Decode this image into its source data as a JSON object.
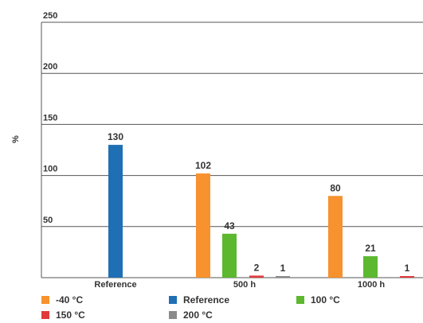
{
  "chart_data": {
    "type": "bar",
    "ylabel": "%",
    "ylim": [
      0,
      250
    ],
    "yticks": [
      50,
      100,
      150,
      200,
      250
    ],
    "grid": true,
    "legend_position": "bottom",
    "categories": [
      "Reference",
      "500 h",
      "1000 h"
    ],
    "series": [
      {
        "name": "Reference",
        "color": "#1f6fb4",
        "values": [
          130,
          null,
          null
        ],
        "labels": [
          "130",
          null,
          null
        ]
      },
      {
        "name": "-40 °C",
        "color": "#f7922e",
        "values": [
          null,
          102,
          80
        ],
        "labels": [
          null,
          "102",
          "80"
        ]
      },
      {
        "name": "100 °C",
        "color": "#5cb82f",
        "values": [
          null,
          43,
          21
        ],
        "labels": [
          null,
          "43",
          "21"
        ]
      },
      {
        "name": "150 °C",
        "color": "#e0393b",
        "values": [
          null,
          2,
          1
        ],
        "labels": [
          null,
          "2",
          "1"
        ]
      },
      {
        "name": "200 °C",
        "color": "#8a8a8a",
        "values": [
          null,
          1,
          null
        ],
        "labels": [
          null,
          "1",
          null
        ]
      }
    ]
  },
  "legend": [
    {
      "label": "-40 °C",
      "color": "#f7922e"
    },
    {
      "label": "Reference",
      "color": "#1f6fb4"
    },
    {
      "label": "100 °C",
      "color": "#5cb82f"
    },
    {
      "label": "150 °C",
      "color": "#e0393b"
    },
    {
      "label": "200 °C",
      "color": "#8a8a8a"
    }
  ]
}
